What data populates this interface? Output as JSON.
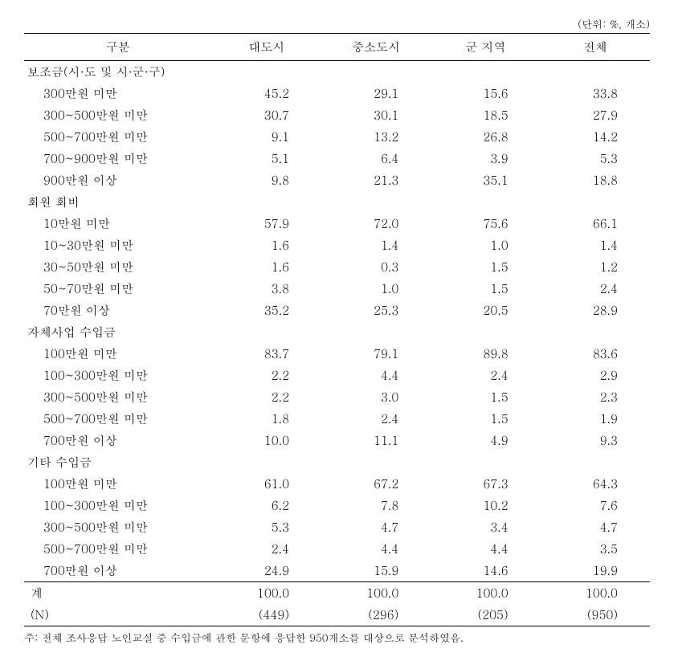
{
  "unit_label": "(단위: %, 개소)",
  "headers": {
    "col0": "구분",
    "col1": "대도시",
    "col2": "중소도시",
    "col3": "군 지역",
    "col4": "전체"
  },
  "sections": [
    {
      "title": "보조금(시·도 및 시·군·구)",
      "rows": [
        {
          "label": "300만원 미만",
          "c1": "45.2",
          "c2": "29.1",
          "c3": "15.6",
          "c4": "33.8"
        },
        {
          "label": "300~500만원 미만",
          "c1": "30.7",
          "c2": "30.1",
          "c3": "18.5",
          "c4": "27.9"
        },
        {
          "label": "500~700만원 미만",
          "c1": "9.1",
          "c2": "13.2",
          "c3": "26.8",
          "c4": "14.2"
        },
        {
          "label": "700~900만원 미만",
          "c1": "5.1",
          "c2": "6.4",
          "c3": "3.9",
          "c4": "5.3"
        },
        {
          "label": "900만원 이상",
          "c1": "9.8",
          "c2": "21.3",
          "c3": "35.1",
          "c4": "18.8"
        }
      ]
    },
    {
      "title": "회원 회비",
      "rows": [
        {
          "label": "10만원 미만",
          "c1": "57.9",
          "c2": "72.0",
          "c3": "75.6",
          "c4": "66.1"
        },
        {
          "label": "10~30만원 미만",
          "c1": "1.6",
          "c2": "1.4",
          "c3": "1.0",
          "c4": "1.4"
        },
        {
          "label": "30~50만원 미만",
          "c1": "1.6",
          "c2": "0.3",
          "c3": "1.5",
          "c4": "1.2"
        },
        {
          "label": "50~70만원 미만",
          "c1": "3.8",
          "c2": "1.0",
          "c3": "1.5",
          "c4": "2.4"
        },
        {
          "label": "70만원 이상",
          "c1": "35.2",
          "c2": "25.3",
          "c3": "20.5",
          "c4": "28.9"
        }
      ]
    },
    {
      "title": "자체사업 수입금",
      "rows": [
        {
          "label": "100만원 미만",
          "c1": "83.7",
          "c2": "79.1",
          "c3": "89.8",
          "c4": "83.6"
        },
        {
          "label": "100~300만원 미만",
          "c1": "2.2",
          "c2": "4.4",
          "c3": "2.4",
          "c4": "2.9"
        },
        {
          "label": "300~500만원 미만",
          "c1": "2.2",
          "c2": "3.0",
          "c3": "1.5",
          "c4": "2.3"
        },
        {
          "label": "500~700만원 미만",
          "c1": "1.8",
          "c2": "2.4",
          "c3": "1.5",
          "c4": "1.9"
        },
        {
          "label": "700만원 이상",
          "c1": "10.0",
          "c2": "11.1",
          "c3": "4.9",
          "c4": "9.3"
        }
      ]
    },
    {
      "title": "기타 수입금",
      "rows": [
        {
          "label": "100만원 미만",
          "c1": "61.0",
          "c2": "67.2",
          "c3": "67.3",
          "c4": "64.3"
        },
        {
          "label": "100~300만원 미만",
          "c1": "6.2",
          "c2": "7.8",
          "c3": "10.2",
          "c4": "7.6"
        },
        {
          "label": "300~500만원 미만",
          "c1": "5.3",
          "c2": "4.7",
          "c3": "3.4",
          "c4": "4.7"
        },
        {
          "label": "500~700만원 미만",
          "c1": "2.4",
          "c2": "4.4",
          "c3": "4.4",
          "c4": "3.5"
        },
        {
          "label": "700만원 이상",
          "c1": "24.9",
          "c2": "15.9",
          "c3": "14.6",
          "c4": "19.9"
        }
      ]
    }
  ],
  "totals": {
    "label": "계",
    "c1": "100.0",
    "c2": "100.0",
    "c3": "100.0",
    "c4": "100.0"
  },
  "counts": {
    "label": "(N)",
    "c1": "(449)",
    "c2": "(296)",
    "c3": "(205)",
    "c4": "(950)"
  },
  "footnote": "주: 전체 조사응답 노인교실 중 수입금에 관한 문항에 응답한 950개소를 대상으로 분석하였음."
}
